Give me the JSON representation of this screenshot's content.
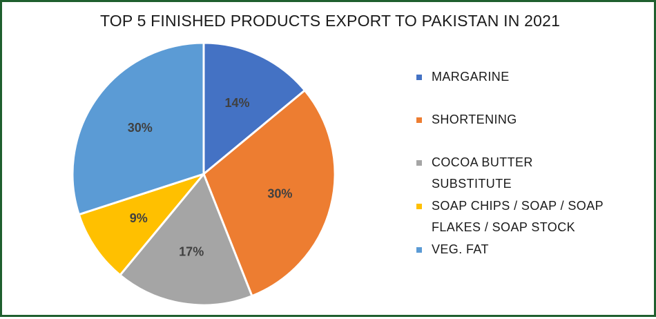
{
  "chart_data": {
    "type": "pie",
    "title": "TOP 5 FINISHED PRODUCTS EXPORT TO PAKISTAN IN 2021",
    "slices": [
      {
        "label_lines": [
          "MARGARINE"
        ],
        "value": 14,
        "value_label": "14%",
        "color": "#4472c4"
      },
      {
        "label_lines": [
          "SHORTENING"
        ],
        "value": 30,
        "value_label": "30%",
        "color": "#ed7d31"
      },
      {
        "label_lines": [
          "COCOA BUTTER",
          "SUBSTITUTE"
        ],
        "value": 17,
        "value_label": "17%",
        "color": "#a5a5a5"
      },
      {
        "label_lines": [
          "SOAP CHIPS / SOAP / SOAP",
          "FLAKES / SOAP STOCK"
        ],
        "value": 9,
        "value_label": "9%",
        "color": "#ffc000"
      },
      {
        "label_lines": [
          "VEG. FAT"
        ],
        "value": 30,
        "value_label": "30%",
        "color": "#5b9bd5"
      }
    ],
    "legend_position": "right",
    "start_angle_deg": 0,
    "direction": "clockwise"
  },
  "frame_color": "#1f5f2e"
}
